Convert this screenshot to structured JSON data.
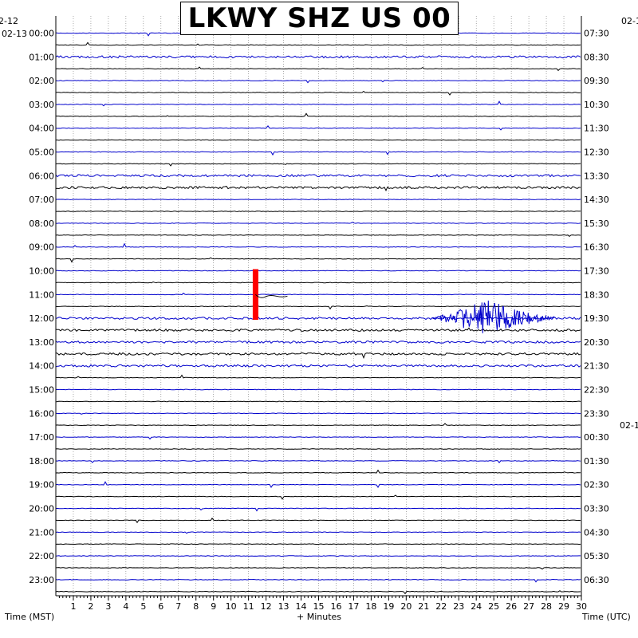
{
  "title": "LKWY SHZ US 00",
  "dates": {
    "left_top": "2-12",
    "left_second": "02-13",
    "right_top": "02-1",
    "right_mid": "02-1"
  },
  "left_axis_label": "Time (MST)",
  "right_axis_label": "Time (UTC)",
  "x_axis_label": "+ Minutes",
  "colors": {
    "trace_blue": "#0000cc",
    "trace_black": "#000000",
    "marker_red": "#ff0000",
    "grid": "#000000"
  },
  "chart_data": {
    "type": "line",
    "title": "LKWY SHZ US 00",
    "xlabel": "+ Minutes",
    "ylabel_left": "Time (MST)",
    "ylabel_right": "Time (UTC)",
    "xlim": [
      0,
      30
    ],
    "x_ticks": [
      "1",
      "2",
      "3",
      "4",
      "5",
      "6",
      "7",
      "8",
      "9",
      "10",
      "11",
      "12",
      "13",
      "14",
      "15",
      "16",
      "17",
      "18",
      "19",
      "20",
      "21",
      "22",
      "23",
      "24",
      "25",
      "26",
      "27",
      "28",
      "29",
      "30"
    ],
    "left_hour_labels": [
      "00:00",
      "01:00",
      "02:00",
      "03:00",
      "04:00",
      "05:00",
      "06:00",
      "07:00",
      "08:00",
      "09:00",
      "10:00",
      "11:00",
      "12:00",
      "13:00",
      "14:00",
      "15:00",
      "16:00",
      "17:00",
      "18:00",
      "19:00",
      "20:00",
      "21:00",
      "22:00",
      "23:00"
    ],
    "right_hour_labels": [
      "07:30",
      "08:30",
      "09:30",
      "10:30",
      "11:30",
      "12:30",
      "13:30",
      "14:30",
      "15:30",
      "16:30",
      "17:30",
      "18:30",
      "19:30",
      "20:30",
      "21:30",
      "22:30",
      "23:30",
      "00:30",
      "01:30",
      "02:30",
      "03:30",
      "04:30",
      "05:30",
      "06:30"
    ],
    "trace_count": 48,
    "trace_minutes": 30,
    "trace_colors": [
      "blue",
      "black"
    ],
    "events": [
      {
        "name": "earthquake",
        "trace_index": 24,
        "start_minute": 21.5,
        "end_minute": 28.5,
        "peak_minute": 24.5
      },
      {
        "name": "red-marker",
        "start_trace": 20,
        "end_trace": 24,
        "minute": 11.4
      }
    ],
    "grid": true
  }
}
